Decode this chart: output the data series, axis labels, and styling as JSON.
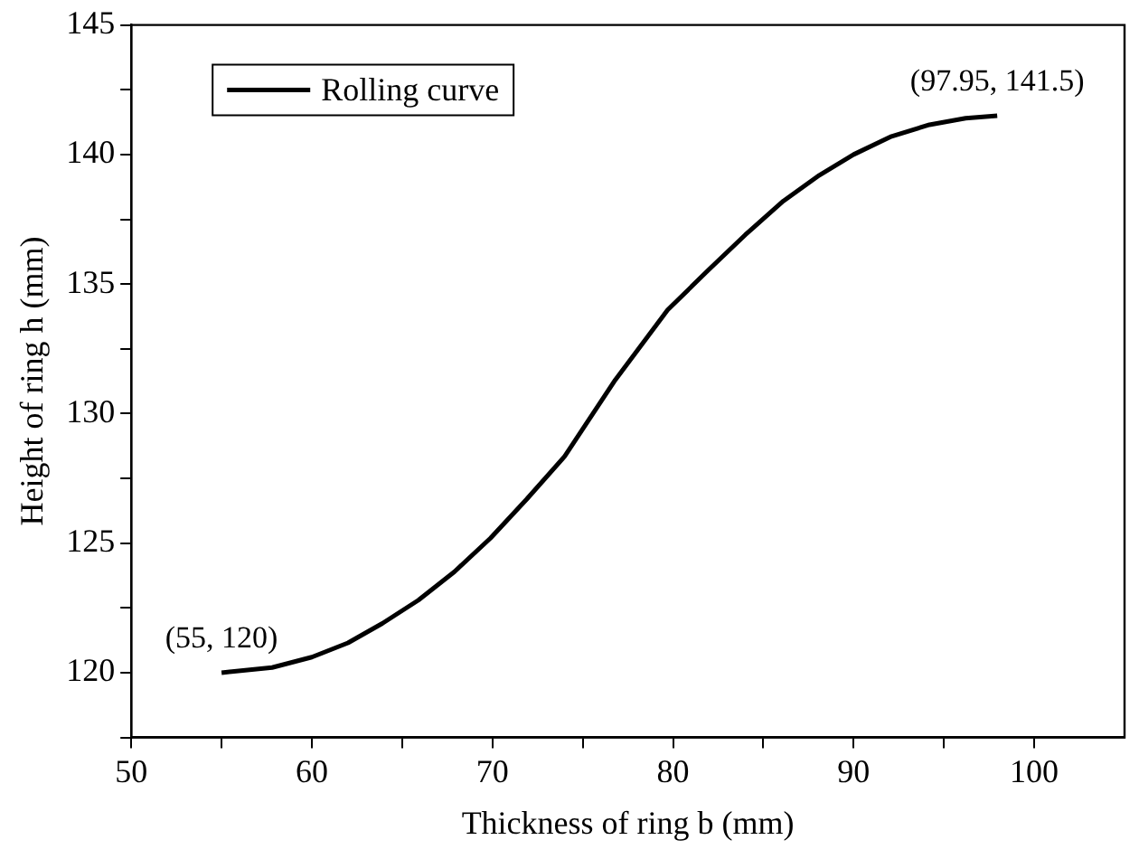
{
  "chart_data": {
    "type": "line",
    "xlabel": "Thickness of ring b (mm)",
    "ylabel": "Height of ring h (mm)",
    "x": [
      55,
      57.8,
      60,
      62,
      63.9,
      65.9,
      67.9,
      69.9,
      71.9,
      74,
      76.8,
      79.7,
      81.9,
      84,
      86.1,
      88.1,
      90,
      92.1,
      94.2,
      96.2,
      97.95
    ],
    "series": [
      {
        "name": "Rolling curve",
        "color": "#000000",
        "values": [
          120,
          120.2,
          120.6,
          121.15,
          121.9,
          122.8,
          123.9,
          125.2,
          126.7,
          128.35,
          131.3,
          134,
          135.5,
          136.9,
          138.2,
          139.2,
          140,
          140.7,
          141.15,
          141.4,
          141.5
        ]
      }
    ],
    "xlim": [
      50,
      105
    ],
    "ylim": [
      117.5,
      145
    ],
    "xticks": [
      50,
      {
        "value": 55,
        "label": null
      },
      60,
      {
        "value": 65,
        "label": null
      },
      70,
      {
        "value": 75,
        "label": null
      },
      80,
      {
        "value": 85,
        "label": null
      },
      90,
      {
        "value": 95,
        "label": null
      },
      100
    ],
    "yticks": [
      {
        "value": 117.5,
        "label": null
      },
      120,
      {
        "value": 122.5,
        "label": null
      },
      125,
      {
        "value": 127.5,
        "label": null
      },
      130,
      {
        "value": 132.5,
        "label": null
      },
      135,
      {
        "value": 137.5,
        "label": null
      },
      140,
      {
        "value": 142.5,
        "label": null
      },
      145
    ],
    "annotations": [
      {
        "text": "(55, 120)",
        "x": 55,
        "y": 120
      },
      {
        "text": "(97.95, 141.5)",
        "x": 97.95,
        "y": 141.5
      }
    ],
    "grid": false,
    "legend": "top left",
    "marker": "none",
    "line_style": "solid"
  }
}
